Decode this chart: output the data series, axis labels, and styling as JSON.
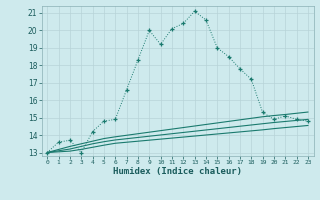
{
  "xlabel": "Humidex (Indice chaleur)",
  "bg_color": "#ceeaed",
  "grid_color": "#b8d4d8",
  "line_color": "#1a7a6e",
  "xlim": [
    -0.5,
    23.5
  ],
  "ylim": [
    12.8,
    21.4
  ],
  "xticks": [
    0,
    1,
    2,
    3,
    4,
    5,
    6,
    7,
    8,
    9,
    10,
    11,
    12,
    13,
    14,
    15,
    16,
    17,
    18,
    19,
    20,
    21,
    22,
    23
  ],
  "yticks": [
    13,
    14,
    15,
    16,
    17,
    18,
    19,
    20,
    21
  ],
  "series": [
    {
      "x": [
        0,
        1,
        2,
        3,
        4,
        5,
        6,
        7,
        8,
        9,
        10,
        11,
        12,
        13,
        14,
        15,
        16,
        17,
        18,
        19,
        20,
        21,
        22,
        23
      ],
      "y": [
        13.0,
        13.6,
        13.7,
        13.0,
        14.2,
        14.8,
        14.9,
        16.6,
        18.3,
        20.0,
        19.2,
        20.1,
        20.4,
        21.1,
        20.6,
        19.0,
        18.5,
        17.8,
        17.2,
        15.3,
        14.9,
        15.1,
        14.9,
        14.8
      ],
      "style": "dotted",
      "marker": "+"
    },
    {
      "x": [
        0,
        2,
        3,
        4,
        5,
        6,
        19,
        20,
        21,
        22,
        23
      ],
      "y": [
        13.0,
        13.35,
        13.5,
        13.65,
        13.8,
        13.9,
        15.05,
        15.12,
        15.18,
        15.25,
        15.32
      ],
      "style": "solid",
      "marker": null
    },
    {
      "x": [
        0,
        2,
        3,
        4,
        5,
        6,
        19,
        20,
        21,
        22,
        23
      ],
      "y": [
        13.0,
        13.2,
        13.35,
        13.5,
        13.62,
        13.72,
        14.65,
        14.72,
        14.78,
        14.84,
        14.9
      ],
      "style": "solid",
      "marker": null
    },
    {
      "x": [
        0,
        2,
        3,
        4,
        5,
        6,
        19,
        20,
        21,
        22,
        23
      ],
      "y": [
        13.0,
        13.08,
        13.18,
        13.3,
        13.42,
        13.53,
        14.3,
        14.37,
        14.43,
        14.49,
        14.55
      ],
      "style": "solid",
      "marker": null
    }
  ]
}
